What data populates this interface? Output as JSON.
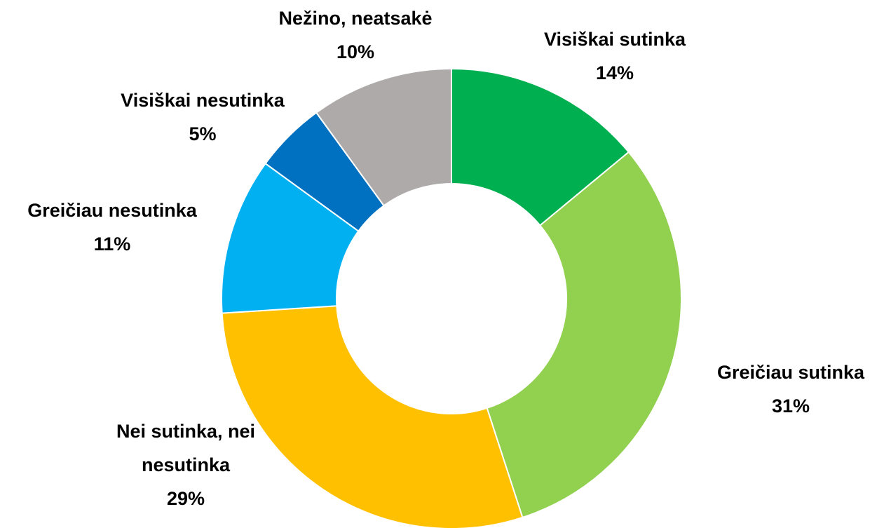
{
  "chart_data": {
    "type": "donut",
    "categories": [
      "Visiškai sutinka",
      "Greičiau sutinka",
      "Nei sutinka, nei nesutinka",
      "Greičiau nesutinka",
      "Visiškai nesutinka",
      "Nežino, neatsakė"
    ],
    "values": [
      14,
      31,
      29,
      11,
      5,
      10
    ],
    "value_labels": [
      "14%",
      "31%",
      "29%",
      "11%",
      "5%",
      "10%"
    ],
    "colors": [
      "#00b050",
      "#92d050",
      "#ffc000",
      "#00b0f0",
      "#0070c0",
      "#aeaaaa"
    ]
  }
}
